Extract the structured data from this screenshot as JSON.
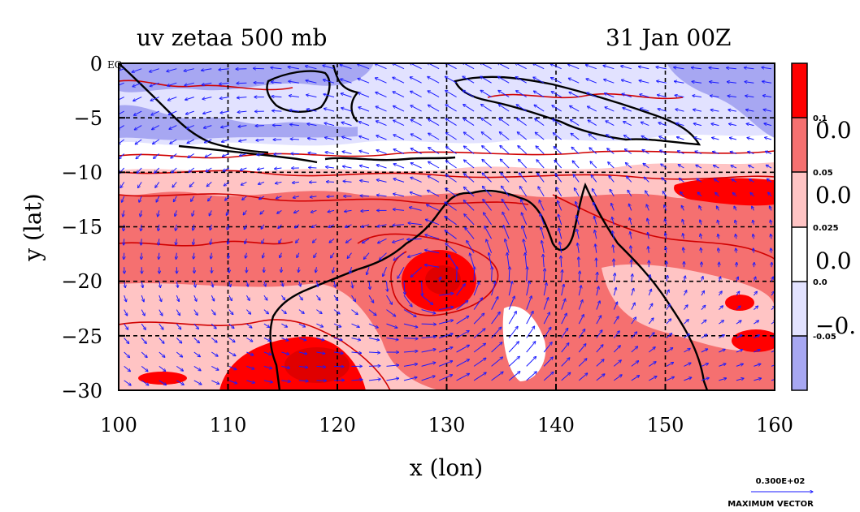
{
  "chart_data": {
    "type": "heatmap",
    "title_left": "uv zetaa 500 mb",
    "title_right": "31 Jan 00Z",
    "xlabel": "x (lon)",
    "ylabel": "y (lat)",
    "xlim": [
      100,
      160
    ],
    "ylim": [
      -30,
      0
    ],
    "x_ticks": [
      "100",
      "110",
      "120",
      "130",
      "140",
      "150",
      "160"
    ],
    "y_ticks": [
      "0",
      "−5",
      "−10",
      "−15",
      "−20",
      "−25",
      "−30"
    ],
    "x_tick_values": [
      100,
      110,
      120,
      130,
      140,
      150,
      160
    ],
    "y_tick_values": [
      0,
      -5,
      -10,
      -15,
      -20,
      -25,
      -30
    ],
    "equator_label": "EQ",
    "grid": true,
    "colorbar": {
      "levels": [
        {
          "label": "0.1",
          "color": "#ff0000"
        },
        {
          "label": "0.05",
          "color": "#f57070"
        },
        {
          "label": "0.025",
          "color": "#ffc4c4"
        },
        {
          "label": "0.0",
          "color": "#ffffff"
        },
        {
          "label": "-0.05",
          "color": "#e2e2ff"
        },
        {
          "label": "",
          "color": "#a7a7f2"
        }
      ],
      "overlay_labels": [
        "0.0",
        "0.0",
        "0.0",
        "−0."
      ]
    },
    "regions": [
      {
        "name": "north-negative-band",
        "lon": [
          100,
          160
        ],
        "lat": [
          -8,
          0
        ],
        "level": -0.05
      },
      {
        "name": "cyclone-center",
        "lon": [
          129.5
        ],
        "lat": [
          -20
        ],
        "level": 0.1
      },
      {
        "name": "southwest-maximum",
        "lon": [
          119
        ],
        "lat": [
          -27
        ],
        "level": 0.1
      },
      {
        "name": "east-coral-sea-max",
        "lon": [
          157
        ],
        "lat": [
          -11
        ],
        "level": 0.1
      }
    ],
    "vectors": {
      "variable": "uv",
      "max_vector_value": "0.300E+02",
      "max_vector_label": "MAXIMUM VECTOR"
    },
    "colors": {
      "vector": "#1a1aff",
      "coast": "#000000",
      "contour": "#d00000"
    }
  }
}
